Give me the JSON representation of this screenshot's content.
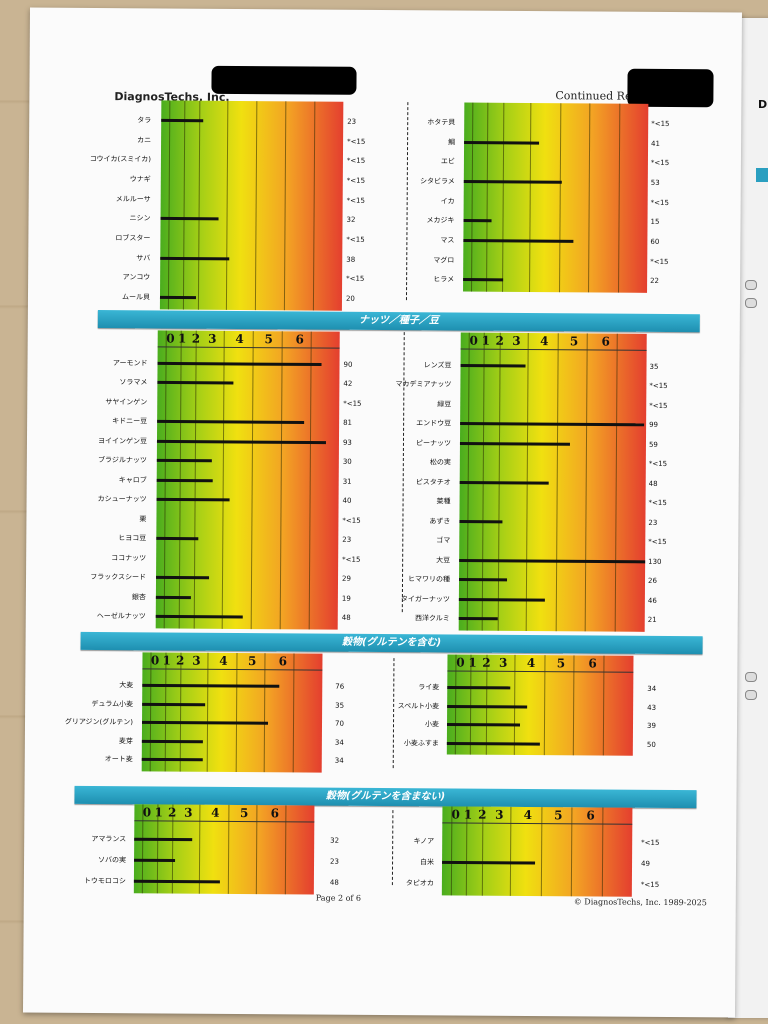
{
  "header": {
    "company": "DiagnosTechs, Inc.",
    "continued": "Continued Resul"
  },
  "scale_ticks": [
    "0",
    "1",
    "2",
    "3",
    "4",
    "5",
    "6"
  ],
  "side_page": {
    "letter": "D"
  },
  "sections": [
    {
      "key": "seafood",
      "title": "",
      "left": [
        {
          "name": "タラ",
          "display": "23",
          "level": 23
        },
        {
          "name": "カニ",
          "display": "*<15",
          "level": 0
        },
        {
          "name": "コウイカ(スミイカ)",
          "display": "*<15",
          "level": 0
        },
        {
          "name": "ウナギ",
          "display": "*<15",
          "level": 0
        },
        {
          "name": "メルルーサ",
          "display": "*<15",
          "level": 0
        },
        {
          "name": "ニシン",
          "display": "32",
          "level": 32
        },
        {
          "name": "ロブスター",
          "display": "*<15",
          "level": 0
        },
        {
          "name": "サバ",
          "display": "38",
          "level": 38
        },
        {
          "name": "アンコウ",
          "display": "*<15",
          "level": 0
        },
        {
          "name": "ムール貝",
          "display": "20",
          "level": 20
        }
      ],
      "right": [
        {
          "name": "ホタテ貝",
          "display": "*<15",
          "level": 0
        },
        {
          "name": "鯛",
          "display": "41",
          "level": 41
        },
        {
          "name": "エビ",
          "display": "*<15",
          "level": 0
        },
        {
          "name": "シタビラメ",
          "display": "53",
          "level": 53
        },
        {
          "name": "イカ",
          "display": "*<15",
          "level": 0
        },
        {
          "name": "メカジキ",
          "display": "15",
          "level": 15
        },
        {
          "name": "マス",
          "display": "60",
          "level": 60
        },
        {
          "name": "マグロ",
          "display": "*<15",
          "level": 0
        },
        {
          "name": "ヒラメ",
          "display": "22",
          "level": 22
        }
      ]
    },
    {
      "key": "nuts",
      "title": "ナッツ／種子／豆",
      "left": [
        {
          "name": "アーモンド",
          "display": "90",
          "level": 90
        },
        {
          "name": "ソラマメ",
          "display": "42",
          "level": 42
        },
        {
          "name": "サヤインゲン",
          "display": "*<15",
          "level": 0
        },
        {
          "name": "キドニー豆",
          "display": "81",
          "level": 81
        },
        {
          "name": "ヨイインゲン豆",
          "display": "93",
          "level": 93
        },
        {
          "name": "ブラジルナッツ",
          "display": "30",
          "level": 30
        },
        {
          "name": "キャロブ",
          "display": "31",
          "level": 31
        },
        {
          "name": "カシューナッツ",
          "display": "40",
          "level": 40
        },
        {
          "name": "栗",
          "display": "*<15",
          "level": 0
        },
        {
          "name": "ヒヨコ豆",
          "display": "23",
          "level": 23
        },
        {
          "name": "ココナッツ",
          "display": "*<15",
          "level": 0
        },
        {
          "name": "フラックスシード",
          "display": "29",
          "level": 29
        },
        {
          "name": "銀杏",
          "display": "19",
          "level": 19
        },
        {
          "name": "ヘーゼルナッツ",
          "display": "48",
          "level": 48
        }
      ],
      "right": [
        {
          "name": "レンズ豆",
          "display": "35",
          "level": 35
        },
        {
          "name": "マカデミアナッツ",
          "display": "*<15",
          "level": 0
        },
        {
          "name": "緑豆",
          "display": "*<15",
          "level": 0
        },
        {
          "name": "エンドウ豆",
          "display": "99",
          "level": 99
        },
        {
          "name": "ピーナッツ",
          "display": "59",
          "level": 59
        },
        {
          "name": "松の実",
          "display": "*<15",
          "level": 0
        },
        {
          "name": "ピスタチオ",
          "display": "48",
          "level": 48
        },
        {
          "name": "菜種",
          "display": "*<15",
          "level": 0
        },
        {
          "name": "あずき",
          "display": "23",
          "level": 23
        },
        {
          "name": "ゴマ",
          "display": "*<15",
          "level": 0
        },
        {
          "name": "大豆",
          "display": "130",
          "level": 130
        },
        {
          "name": "ヒマワリの種",
          "display": "26",
          "level": 26
        },
        {
          "name": "タイガーナッツ",
          "display": "46",
          "level": 46
        },
        {
          "name": "西洋クルミ",
          "display": "21",
          "level": 21
        }
      ]
    },
    {
      "key": "grains_gluten",
      "title": "穀物(グルテンを含む)",
      "left": [
        {
          "name": "大麦",
          "display": "76",
          "level": 76
        },
        {
          "name": "デュラム小麦",
          "display": "35",
          "level": 35
        },
        {
          "name": "グリアジン(グルテン)",
          "display": "70",
          "level": 70
        },
        {
          "name": "麦芽",
          "display": "34",
          "level": 34
        },
        {
          "name": "オート麦",
          "display": "34",
          "level": 34
        }
      ],
      "right": [
        {
          "name": "ライ麦",
          "display": "34",
          "level": 34
        },
        {
          "name": "スペルト小麦",
          "display": "43",
          "level": 43
        },
        {
          "name": "小麦",
          "display": "39",
          "level": 39
        },
        {
          "name": "小麦ふすま",
          "display": "50",
          "level": 50
        }
      ]
    },
    {
      "key": "grains_nogluten",
      "title": "穀物(グルテンを含まない)",
      "left": [
        {
          "name": "アマランス",
          "display": "32",
          "level": 32
        },
        {
          "name": "ソバの実",
          "display": "23",
          "level": 23
        },
        {
          "name": "トウモロコシ",
          "display": "48",
          "level": 48
        }
      ],
      "right": [
        {
          "name": "キノア",
          "display": "*<15",
          "level": 0
        },
        {
          "name": "白米",
          "display": "49",
          "level": 49
        },
        {
          "name": "タピオカ",
          "display": "*<15",
          "level": 0
        }
      ]
    }
  ],
  "footer": {
    "page": "Page 2 of 6",
    "copyright": "© DiagnosTechs, Inc. 1989-2025"
  }
}
